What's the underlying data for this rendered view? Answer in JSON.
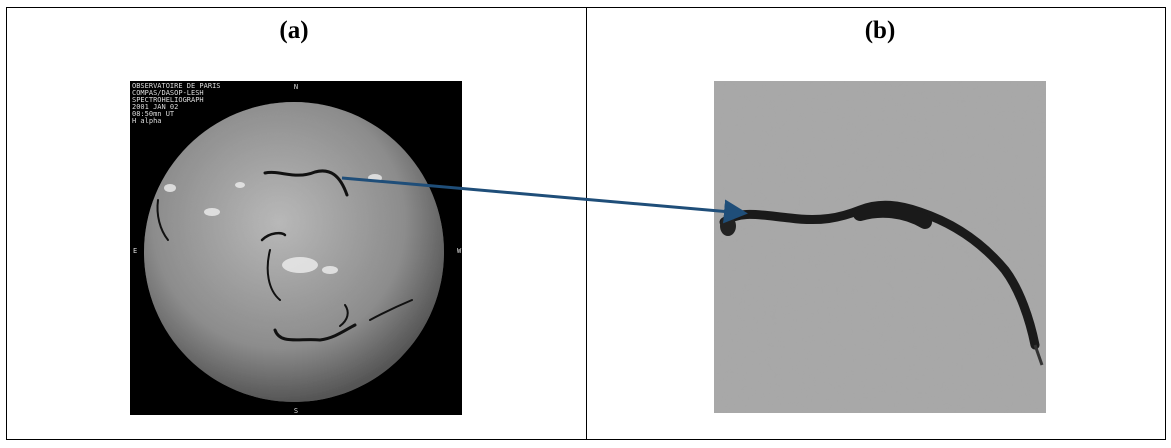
{
  "panels": [
    {
      "label": "(a)",
      "image_text": [
        "OBSERVATOIRE DE PARIS",
        "COMPAS/DASOP-LESH",
        "SPECTROHELIOGRAPH",
        "2001 JAN 02",
        "08:50mn UT",
        "H alpha"
      ],
      "directions": {
        "north": "N",
        "east": "E",
        "west": "W",
        "south": "S"
      }
    },
    {
      "label": "(b)"
    }
  ]
}
